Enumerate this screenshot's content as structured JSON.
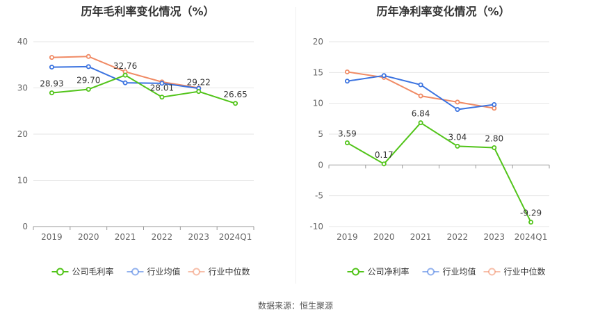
{
  "chart_data": [
    {
      "type": "line",
      "title": "历年毛利率变化情况（%）",
      "categories": [
        "2019",
        "2020",
        "2021",
        "2022",
        "2023",
        "2024Q1"
      ],
      "ylim": [
        0,
        40
      ],
      "yticks": [
        0,
        10,
        20,
        30,
        40
      ],
      "grid": true,
      "legend_position": "bottom",
      "series": [
        {
          "name": "公司毛利率",
          "color": "#52c41a",
          "values": [
            28.93,
            29.7,
            32.76,
            28.01,
            29.22,
            26.65
          ],
          "labels": [
            "28.93",
            "29.70",
            "32.76",
            "28.01",
            "29.22",
            "26.65"
          ]
        },
        {
          "name": "行业均值",
          "color": "#3b73e0",
          "values": [
            34.5,
            34.6,
            31.1,
            31.0,
            29.9,
            null
          ]
        },
        {
          "name": "行业中位数",
          "color": "#f08a64",
          "values": [
            36.6,
            36.8,
            33.5,
            31.3,
            30.0,
            null
          ]
        }
      ]
    },
    {
      "type": "line",
      "title": "历年净利率变化情况（%）",
      "categories": [
        "2019",
        "2020",
        "2021",
        "2022",
        "2023",
        "2024Q1"
      ],
      "ylim": [
        -10,
        20
      ],
      "yticks": [
        -10,
        -5,
        0,
        5,
        10,
        15,
        20
      ],
      "grid": true,
      "legend_position": "bottom",
      "series": [
        {
          "name": "公司净利率",
          "color": "#52c41a",
          "values": [
            3.59,
            0.17,
            6.84,
            3.04,
            2.8,
            -9.29
          ],
          "labels": [
            "3.59",
            "0.17",
            "6.84",
            "3.04",
            "2.80",
            "-9.29"
          ]
        },
        {
          "name": "行业均值",
          "color": "#3b73e0",
          "values": [
            13.6,
            14.5,
            13.0,
            9.0,
            9.8,
            null
          ]
        },
        {
          "name": "行业中位数",
          "color": "#f08a64",
          "values": [
            15.1,
            14.2,
            11.2,
            10.2,
            9.2,
            null
          ]
        }
      ]
    }
  ],
  "source": "数据来源：恒生聚源"
}
